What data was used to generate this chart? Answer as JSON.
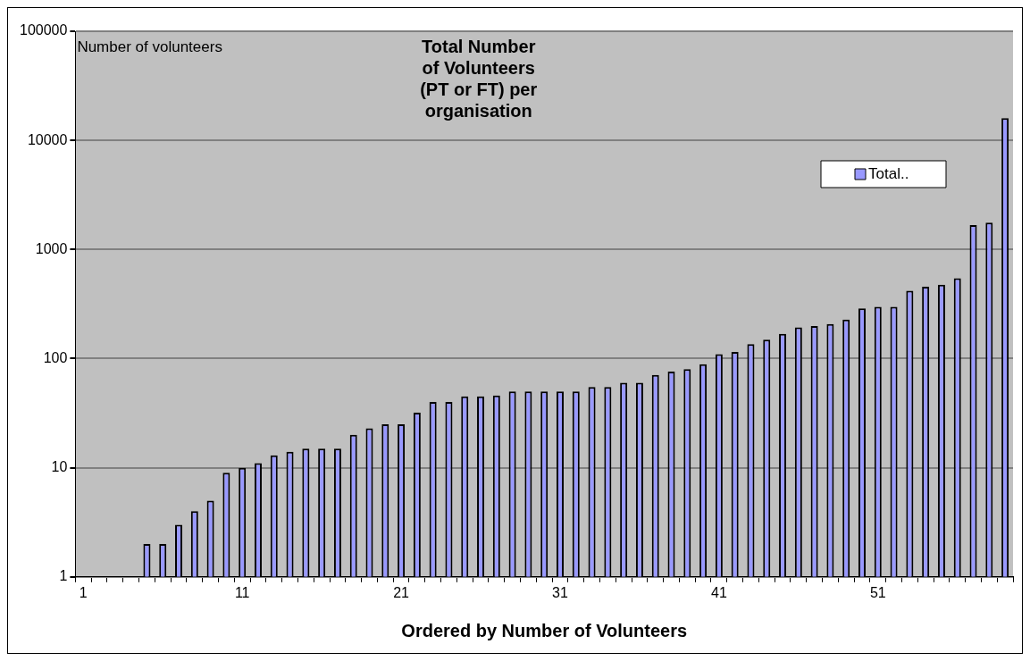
{
  "chart_data": {
    "type": "bar",
    "title": "Total Number of Volunteers (PT or FT) per organisation",
    "xlabel": "Ordered by Number of Volunteers",
    "ylabel": "Number of volunteers",
    "categories": [
      "1",
      null,
      null,
      null,
      null,
      null,
      null,
      null,
      null,
      null,
      "11",
      null,
      null,
      null,
      null,
      null,
      null,
      null,
      null,
      null,
      "21",
      null,
      null,
      null,
      null,
      null,
      null,
      null,
      null,
      null,
      "31",
      null,
      null,
      null,
      null,
      null,
      null,
      null,
      null,
      null,
      "41",
      null,
      null,
      null,
      null,
      null,
      null,
      null,
      null,
      null,
      "51",
      null,
      null,
      null,
      null,
      null,
      null,
      null,
      null
    ],
    "series": [
      {
        "name": "Total..",
        "color": "#9999ff",
        "values": [
          1,
          1,
          null,
          null,
          2,
          2,
          3,
          4,
          5,
          9,
          10,
          11,
          13,
          14,
          15,
          15,
          15,
          20,
          23,
          25,
          25,
          32,
          40,
          40,
          45,
          45,
          46,
          50,
          50,
          50,
          50,
          50,
          55,
          55,
          60,
          60,
          71,
          76,
          80,
          89,
          110,
          115,
          136,
          149,
          169,
          193,
          199,
          208,
          228,
          289,
          298,
          298,
          419,
          455,
          476,
          546,
          1675,
          1766,
          16000
        ]
      }
    ],
    "log": true,
    "ylim": [
      1,
      100000
    ],
    "yticks": [
      1,
      10,
      100,
      1000,
      10000,
      100000
    ],
    "grid": "y",
    "legend": "top right"
  }
}
